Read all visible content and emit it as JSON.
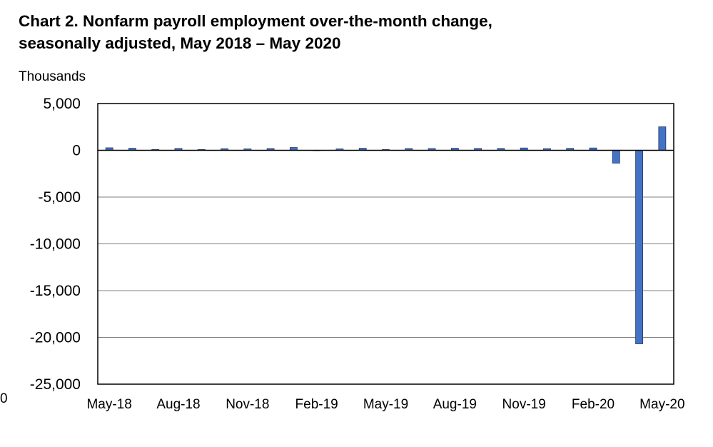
{
  "chart_data": {
    "type": "bar",
    "title_line1": "Chart 2. Nonfarm payroll employment over-the-month change,",
    "title_line2": "seasonally adjusted, May 2018 – May 2020",
    "ylabel": "Thousands",
    "xlabel": "",
    "ylim": [
      -25000,
      5000
    ],
    "yticks": [
      5000,
      0,
      -5000,
      -10000,
      -15000,
      -20000,
      -25000
    ],
    "ytick_labels": [
      "5,000",
      "0",
      "-5,000",
      "-10,000",
      "-15,000",
      "-20,000",
      "-25,000"
    ],
    "categories": [
      "May-18",
      "Jun-18",
      "Jul-18",
      "Aug-18",
      "Sep-18",
      "Oct-18",
      "Nov-18",
      "Dec-18",
      "Jan-19",
      "Feb-19",
      "Mar-19",
      "Apr-19",
      "May-19",
      "Jun-19",
      "Jul-19",
      "Aug-19",
      "Sep-19",
      "Oct-19",
      "Nov-19",
      "Dec-19",
      "Jan-20",
      "Feb-20",
      "Mar-20",
      "Apr-20",
      "May-20"
    ],
    "xtick_labels": [
      "May-18",
      "Aug-18",
      "Nov-18",
      "Feb-19",
      "May-19",
      "Aug-19",
      "Nov-19",
      "Feb-20",
      "May-20"
    ],
    "xtick_label_indices": [
      0,
      3,
      6,
      9,
      12,
      15,
      18,
      21,
      24
    ],
    "values": [
      270,
      220,
      90,
      200,
      90,
      170,
      150,
      190,
      300,
      1,
      150,
      220,
      80,
      190,
      190,
      220,
      200,
      200,
      250,
      180,
      210,
      250,
      -1373,
      -20687,
      2509
    ],
    "grid": true,
    "bar_color": "#4472C4",
    "bar_edge_color": "#1F3864"
  },
  "stray_text": "0"
}
